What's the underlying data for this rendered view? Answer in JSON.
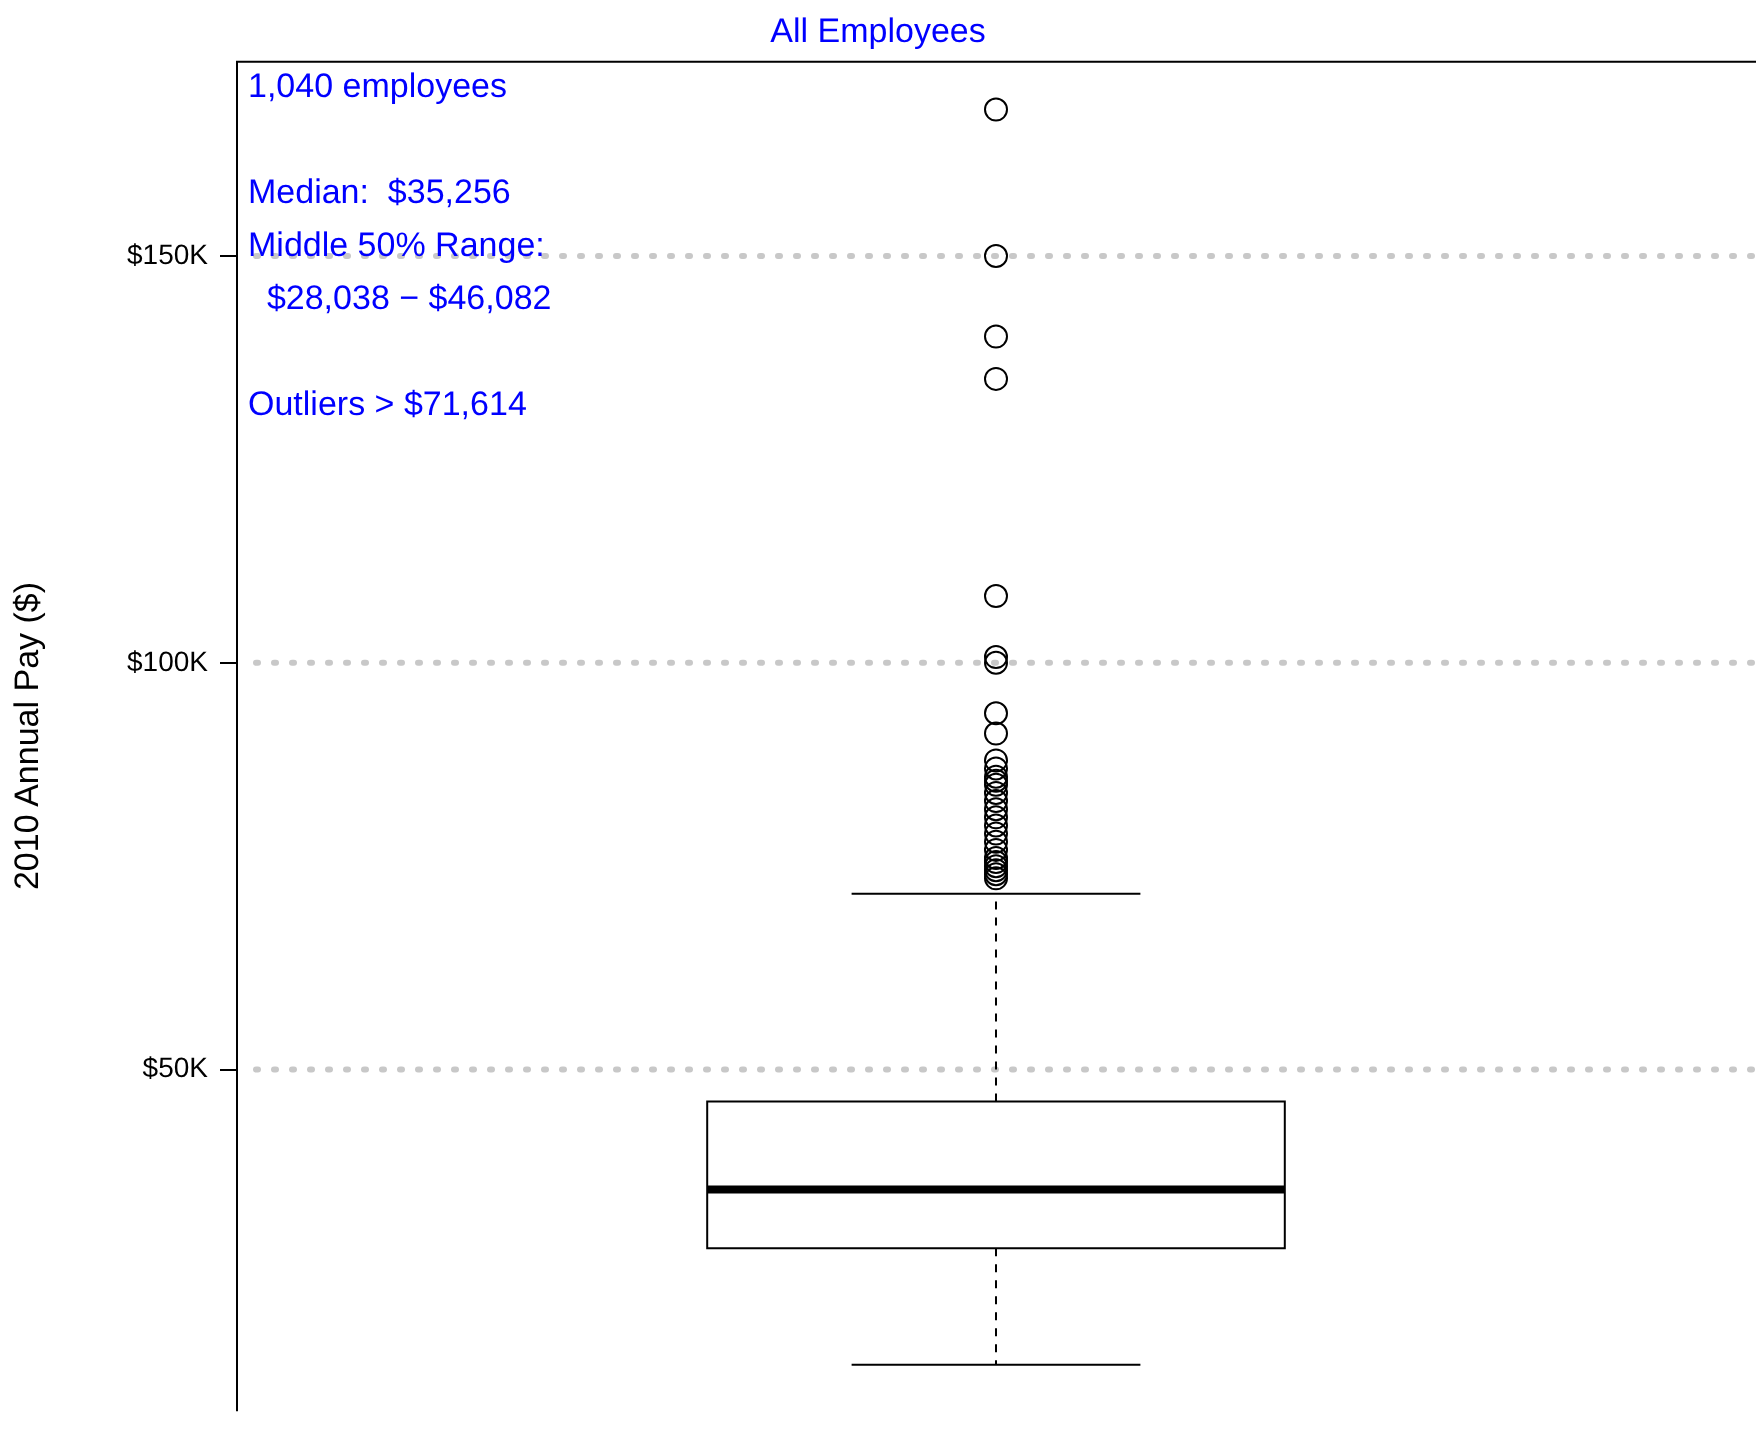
{
  "chart_data": {
    "type": "box",
    "title": "All Employees",
    "ylabel": "2010 Annual Pay ($)",
    "categories": [
      null
    ],
    "boxes": [
      {
        "low": 13700,
        "q1": 28038,
        "median": 35256,
        "q3": 46082,
        "high": 71614,
        "outliers": [
          73500,
          74000,
          74500,
          75000,
          75500,
          76000,
          77000,
          78000,
          79000,
          80000,
          81000,
          82000,
          83000,
          84000,
          85000,
          85500,
          86000,
          87000,
          88000,
          91300,
          93800,
          100000,
          100700,
          108200,
          134900,
          140100,
          150000,
          168000
        ]
      }
    ],
    "ylim": [
      8000,
      174000
    ],
    "yticks": [
      {
        "value": 50000,
        "label": "$50K"
      },
      {
        "value": 100000,
        "label": "$100K"
      },
      {
        "value": 150000,
        "label": "$150K"
      }
    ],
    "grid": "y",
    "annotations": [
      "1,040 employees",
      "Median:  $35,256\nMiddle 50% Range:\n  $28,038 − $46,082",
      "Outliers > $71,614"
    ]
  }
}
